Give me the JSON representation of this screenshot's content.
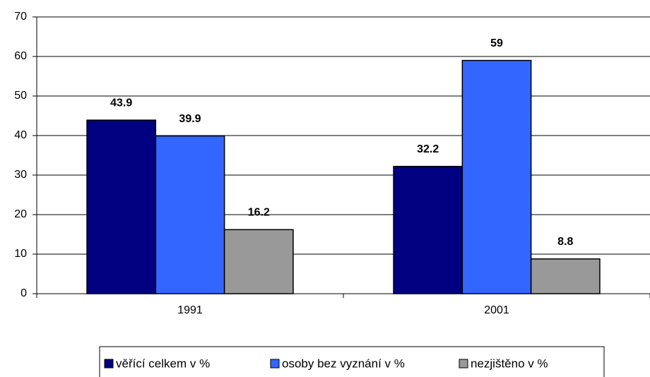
{
  "chart_data": {
    "type": "bar",
    "categories": [
      "1991",
      "2001"
    ],
    "series": [
      {
        "name": "věřící celkem v %",
        "color": "#000080",
        "values": [
          43.9,
          32.2
        ]
      },
      {
        "name": "osoby bez vyznání v %",
        "color": "#3366ff",
        "values": [
          39.9,
          59
        ]
      },
      {
        "name": "nezjištěno v %",
        "color": "#999999",
        "values": [
          16.2,
          8.8
        ]
      }
    ],
    "ylim": [
      0,
      70
    ],
    "yticks": [
      0,
      10,
      20,
      30,
      40,
      50,
      60,
      70
    ],
    "grid": true,
    "legend": "bottom"
  }
}
